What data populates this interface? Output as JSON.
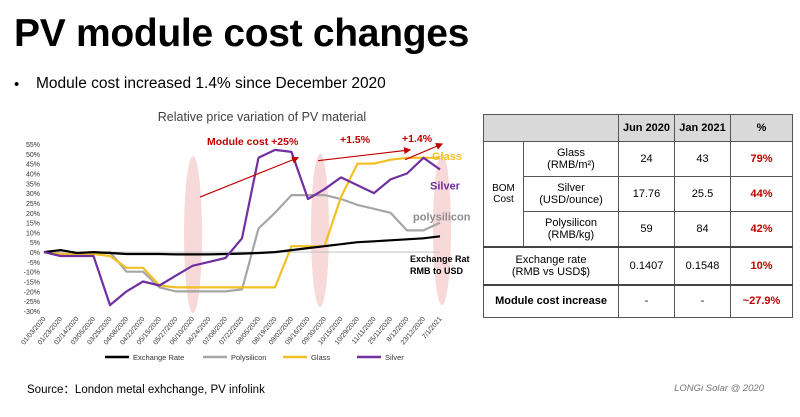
{
  "slide": {
    "title": "PV module cost changes",
    "bullet": "Module cost increased 1.4% since December 2020",
    "source": "Source：London metal exhchange, PV infolink",
    "footer": "LONGi Solar @ 2020"
  },
  "chart_data": {
    "type": "line",
    "title": "Relative price variation of PV material",
    "ylim": [
      -0.3,
      0.55
    ],
    "yticks": [
      "55%",
      "50%",
      "45%",
      "40%",
      "35%",
      "30%",
      "25%",
      "20%",
      "15%",
      "10%",
      "5%",
      "0%",
      "-5%",
      "-10%",
      "-15%",
      "-20%",
      "-25%",
      "-30%"
    ],
    "x": [
      "01/03/2020",
      "01/23/2020",
      "02/14/2020",
      "03/05/2020",
      "03/25/2020",
      "04/08/2020",
      "04/22/2020",
      "05/15/2020",
      "05/27/2020",
      "06/10/2020",
      "06/24/2020",
      "07/08/2020",
      "07/22/2020",
      "08/05/2020",
      "08/19/2020",
      "09/02/2020",
      "09/16/2020",
      "09/30/2020",
      "10/15/2020",
      "10/29/2020",
      "11/11/2020",
      "25/11/2020",
      "8/12/2020",
      "23/12/2020",
      "7/1/2021"
    ],
    "legend_position": "bottom",
    "colors": {
      "Exchange Rate": "#000000",
      "Polysilicon": "#a6a6a6",
      "Glass": "#f2c025",
      "Silver": "#7030a0",
      "annotation": "#c00000",
      "oval": "#f4cccc"
    },
    "series": [
      {
        "name": "Exchange Rate",
        "values": [
          0.0,
          0.01,
          -0.005,
          0.0,
          -0.005,
          -0.01,
          -0.01,
          -0.01,
          -0.012,
          -0.012,
          -0.012,
          -0.01,
          -0.008,
          -0.005,
          0.0,
          0.01,
          0.02,
          0.03,
          0.04,
          0.05,
          0.055,
          0.06,
          0.065,
          0.07,
          0.08
        ]
      },
      {
        "name": "Polysilicon",
        "values": [
          0.0,
          -0.01,
          -0.01,
          -0.01,
          0.0,
          -0.1,
          -0.1,
          -0.18,
          -0.2,
          -0.2,
          -0.2,
          -0.2,
          -0.19,
          0.12,
          0.2,
          0.29,
          0.29,
          0.29,
          0.27,
          0.24,
          0.22,
          0.2,
          0.11,
          0.11,
          0.15
        ]
      },
      {
        "name": "Glass",
        "values": [
          0.0,
          -0.01,
          -0.01,
          -0.01,
          -0.02,
          -0.08,
          -0.08,
          -0.17,
          -0.18,
          -0.18,
          -0.18,
          -0.18,
          -0.18,
          -0.18,
          -0.18,
          0.03,
          0.03,
          0.03,
          0.28,
          0.45,
          0.45,
          0.47,
          0.48,
          0.48,
          0.48
        ]
      },
      {
        "name": "Silver",
        "values": [
          0.0,
          -0.02,
          -0.02,
          -0.02,
          -0.27,
          -0.2,
          -0.15,
          -0.17,
          -0.12,
          -0.07,
          -0.05,
          -0.03,
          0.07,
          0.48,
          0.52,
          0.51,
          0.27,
          0.32,
          0.38,
          0.34,
          0.3,
          0.37,
          0.4,
          0.48,
          0.42
        ]
      }
    ],
    "annotations": [
      {
        "text": "Module cost  +25%"
      },
      {
        "text": "+1.5%"
      },
      {
        "text": "+1.4%"
      },
      {
        "text": "Glass"
      },
      {
        "text": "Silver"
      },
      {
        "text": "polysilicon"
      },
      {
        "text": "Exchange Rate\nRMB to USD"
      }
    ]
  },
  "table": {
    "headers": [
      "Jun 2020",
      "Jan 2021",
      "%"
    ],
    "group_label": "BOM\nCost",
    "bom_rows": [
      {
        "item": "Glass\n(RMB/m²)",
        "jun": "24",
        "jan": "43",
        "pct": "79%"
      },
      {
        "item": "Silver\n(USD/ounce)",
        "jun": "17.76",
        "jan": "25.5",
        "pct": "44%"
      },
      {
        "item": "Polysilicon\n(RMB/kg)",
        "jun": "59",
        "jan": "84",
        "pct": "42%"
      }
    ],
    "exchange_row": {
      "item": "Exchange rate\n(RMB vs USD$)",
      "jun": "0.1407",
      "jan": "0.1548",
      "pct": "10%"
    },
    "total_row": {
      "item": "Module cost increase",
      "jun": "-",
      "jan": "-",
      "pct": "~27.9%"
    }
  }
}
